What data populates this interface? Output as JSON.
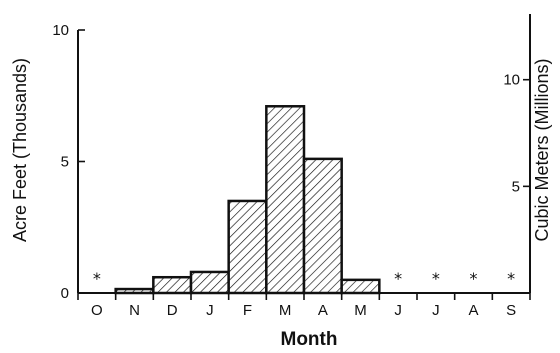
{
  "chart_data": {
    "type": "bar",
    "categories": [
      "O",
      "N",
      "D",
      "J",
      "F",
      "M",
      "A",
      "M",
      "J",
      "J",
      "A",
      "S"
    ],
    "values": [
      null,
      0.15,
      0.6,
      0.8,
      3.5,
      7.1,
      5.1,
      0.5,
      null,
      null,
      null,
      null
    ],
    "trace_marker": "*",
    "trace_months": [
      0,
      8,
      9,
      10,
      11
    ],
    "xlabel": "Month",
    "ylabel": "Acre Feet (Thousands)",
    "ylabel_right": "Cubic Meters (Millions)",
    "ylim": [
      0,
      10
    ],
    "yticks": [
      0,
      5,
      10
    ],
    "ylim_right": [
      0,
      12.33
    ],
    "yticks_right": [
      5,
      10
    ],
    "grid": false,
    "legend": "none"
  }
}
